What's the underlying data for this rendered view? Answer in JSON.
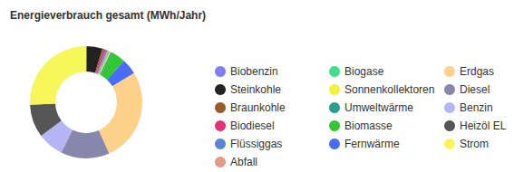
{
  "chart_data": {
    "type": "pie",
    "title": "Energieverbrauch gesamt (MWh/Jahr)",
    "categories": [
      "Biobenzin",
      "Steinkohle",
      "Braunkohle",
      "Biodiesel",
      "Flüssiggas",
      "Abfall",
      "Biogase",
      "Sonnenkollektoren",
      "Umweltwärme",
      "Biomasse",
      "Fernwärme",
      "Erdgas",
      "Diesel",
      "Benzin",
      "Heizöl EL",
      "Strom"
    ],
    "values": [
      0.2,
      4.5,
      0.5,
      0.5,
      0.5,
      0.5,
      0.3,
      0.3,
      0.5,
      4,
      4.5,
      27,
      14,
      7.5,
      9.5,
      25.7
    ],
    "colors": [
      "#7f7ff2",
      "#222222",
      "#9c5a2c",
      "#e5317a",
      "#5b84d6",
      "#e39a88",
      "#3ee08f",
      "#f2f23a",
      "#2a9d8f",
      "#33c833",
      "#4a6cf7",
      "#fdd18a",
      "#8787ad",
      "#b5b5f5",
      "#555555",
      "#f7f75c"
    ]
  }
}
